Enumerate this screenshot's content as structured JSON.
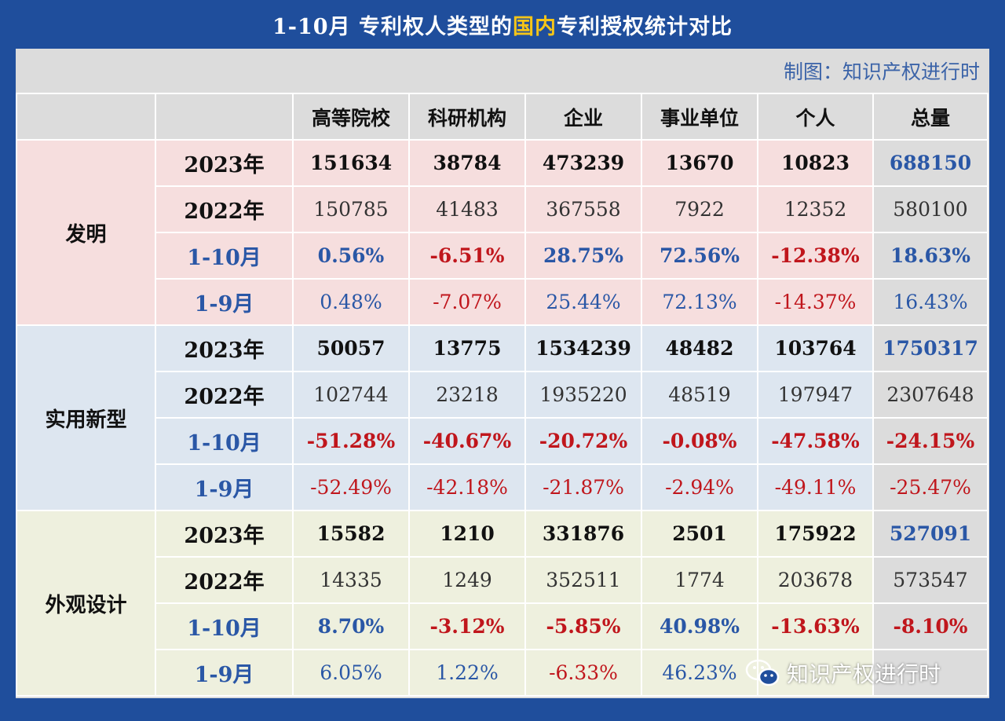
{
  "title": {
    "prefix": "1-10月 专利权人类型的",
    "highlight": "国内",
    "suffix": "专利授权统计对比"
  },
  "credit": "制图：知识产权进行时",
  "columns": [
    "高等院校",
    "科研机构",
    "企业",
    "事业单位",
    "个人",
    "总量"
  ],
  "groups": [
    {
      "label": "发明",
      "rows": [
        {
          "period": "2023年",
          "values": [
            "151634",
            "38784",
            "473239",
            "13670",
            "10823",
            "688150"
          ]
        },
        {
          "period": "2022年",
          "values": [
            "150785",
            "41483",
            "367558",
            "7922",
            "12352",
            "580100"
          ]
        },
        {
          "period": "1-10月",
          "values": [
            "0.56%",
            "-6.51%",
            "28.75%",
            "72.56%",
            "-12.38%",
            "18.63%"
          ]
        },
        {
          "period": "1-9月",
          "values": [
            "0.48%",
            "-7.07%",
            "25.44%",
            "72.13%",
            "-14.37%",
            "16.43%"
          ]
        }
      ]
    },
    {
      "label": "实用新型",
      "rows": [
        {
          "period": "2023年",
          "values": [
            "50057",
            "13775",
            "1534239",
            "48482",
            "103764",
            "1750317"
          ]
        },
        {
          "period": "2022年",
          "values": [
            "102744",
            "23218",
            "1935220",
            "48519",
            "197947",
            "2307648"
          ]
        },
        {
          "period": "1-10月",
          "values": [
            "-51.28%",
            "-40.67%",
            "-20.72%",
            "-0.08%",
            "-47.58%",
            "-24.15%"
          ]
        },
        {
          "period": "1-9月",
          "values": [
            "-52.49%",
            "-42.18%",
            "-21.87%",
            "-2.94%",
            "-49.11%",
            "-25.47%"
          ]
        }
      ]
    },
    {
      "label": "外观设计",
      "rows": [
        {
          "period": "2023年",
          "values": [
            "15582",
            "1210",
            "331876",
            "2501",
            "175922",
            "527091"
          ]
        },
        {
          "period": "2022年",
          "values": [
            "14335",
            "1249",
            "352511",
            "1774",
            "203678",
            "573547"
          ]
        },
        {
          "period": "1-10月",
          "values": [
            "8.70%",
            "-3.12%",
            "-5.85%",
            "40.98%",
            "-13.63%",
            "-8.10%"
          ]
        },
        {
          "period": "1-9月",
          "values": [
            "6.05%",
            "1.22%",
            "-6.33%",
            "46.23%",
            "",
            ""
          ]
        }
      ]
    }
  ],
  "watermark": {
    "icon": "wechat-icon",
    "text": "知识产权进行时"
  },
  "colors": {
    "frame": "#1f4e9c",
    "title_highlight": "#f5c518",
    "invention_bg": "#f6dede",
    "utility_bg": "#dde6f0",
    "design_bg": "#eef0de",
    "positive": "#2a57a6",
    "negative": "#c0161c"
  }
}
